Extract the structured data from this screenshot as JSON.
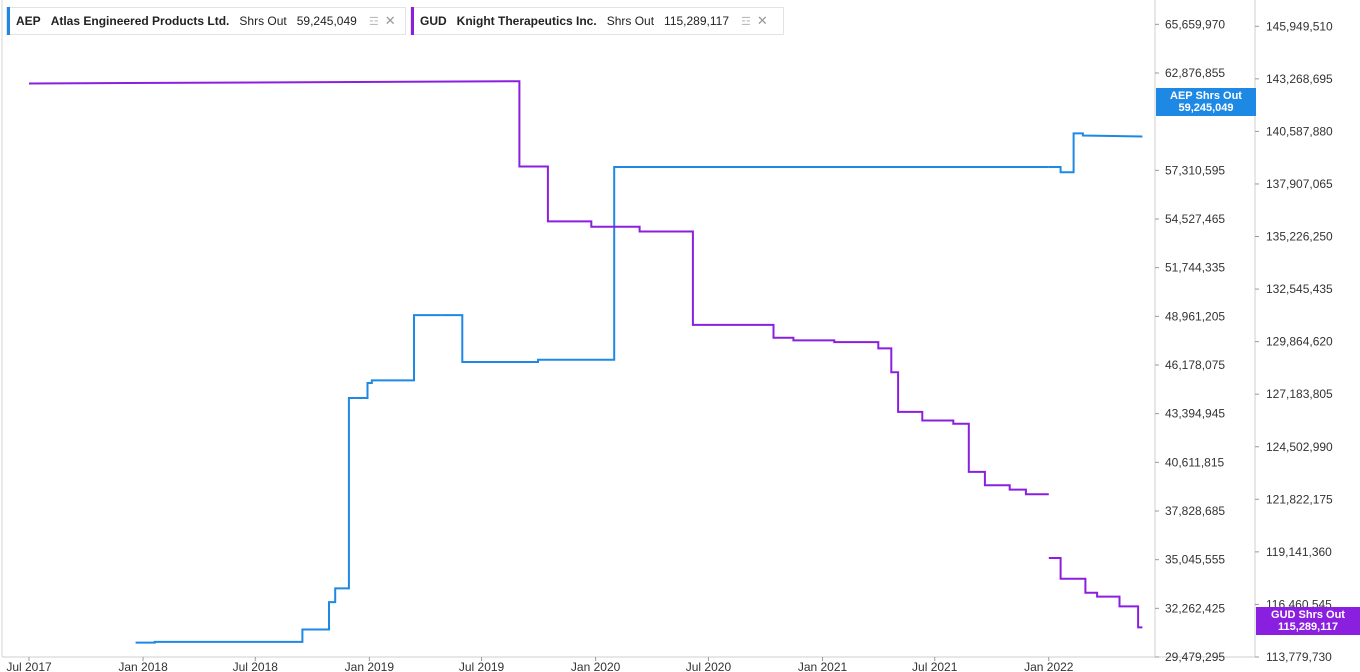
{
  "legend": [
    {
      "ticker": "AEP",
      "name": "Atlas Engineered Products Ltd.",
      "field": "Shrs Out",
      "value": "59,245,049",
      "color": "#1e88e5"
    },
    {
      "ticker": "GUD",
      "name": "Knight Therapeutics Inc.",
      "field": "Shrs Out",
      "value": "115,289,117",
      "color": "#8b1fe0"
    }
  ],
  "tags": {
    "aep": {
      "label": "AEP Shrs Out",
      "value": "59,245,049"
    },
    "gud": {
      "label": "GUD Shrs Out",
      "value": "115,289,117"
    }
  },
  "chart_data": {
    "type": "line",
    "x_ticks": [
      "Jul 2017",
      "Jan 2018",
      "Jul 2018",
      "Jan 2019",
      "Jul 2019",
      "Jan 2020",
      "Jul 2020",
      "Jan 2021",
      "Jul 2021",
      "Jan 2022"
    ],
    "xlim": [
      "2017-07-01",
      "2022-07-01"
    ],
    "y_left": {
      "lim": [
        29479295,
        67051550
      ],
      "ticks": [
        "65,659,970",
        "62,876,855",
        "57,310,595",
        "54,527,465",
        "51,744,335",
        "48,961,205",
        "46,178,075",
        "43,394,945",
        "40,611,815",
        "37,828,685",
        "35,045,555",
        "32,262,425",
        "29,479,295"
      ],
      "tick_values": [
        65659970,
        62876855,
        57310595,
        54527465,
        51744335,
        48961205,
        46178075,
        43394945,
        40611815,
        37828685,
        35045555,
        32262425,
        29479295
      ]
    },
    "y_right": {
      "lim": [
        113779730,
        147290000
      ],
      "ticks": [
        "145,949,510",
        "143,268,695",
        "140,587,880",
        "137,907,065",
        "135,226,250",
        "132,545,435",
        "129,864,620",
        "127,183,805",
        "124,502,990",
        "121,822,175",
        "119,141,360",
        "116,460,545",
        "113,779,730"
      ],
      "tick_values": [
        145949510,
        143268695,
        140587880,
        137907065,
        135226250,
        132545435,
        129864620,
        127183805,
        124502990,
        121822175,
        119141360,
        116460545,
        113779730
      ]
    },
    "series": [
      {
        "name": "AEP Shrs Out",
        "axis": "left",
        "color": "#1e88e5",
        "segments": [
          [
            [
              "2017-12-20",
              30300000
            ],
            [
              "2018-01-20",
              30300000
            ],
            [
              "2018-01-20",
              30340000
            ],
            [
              "2018-09-15",
              30340000
            ],
            [
              "2018-09-15",
              31050000
            ],
            [
              "2018-10-28",
              31050000
            ],
            [
              "2018-10-28",
              32620000
            ],
            [
              "2018-11-07",
              32620000
            ],
            [
              "2018-11-07",
              33400000
            ],
            [
              "2018-11-29",
              33400000
            ],
            [
              "2018-11-29",
              44290000
            ],
            [
              "2018-12-12",
              44290000
            ]
          ],
          [
            [
              "2018-12-12",
              44290000
            ],
            [
              "2018-12-29",
              44290000
            ],
            [
              "2018-12-29",
              45150000
            ],
            [
              "2019-01-05",
              45150000
            ],
            [
              "2019-01-05",
              45300000
            ],
            [
              "2019-03-14",
              45300000
            ],
            [
              "2019-03-14",
              49030000
            ],
            [
              "2019-04-28",
              49030000
            ]
          ],
          [
            [
              "2019-04-28",
              49030000
            ],
            [
              "2019-05-31",
              49030000
            ],
            [
              "2019-05-31",
              46350000
            ],
            [
              "2019-09-30",
              46350000
            ],
            [
              "2019-09-30",
              46480000
            ],
            [
              "2020-01-31",
              46480000
            ],
            [
              "2020-01-31",
              57500000
            ],
            [
              "2021-12-31",
              57500000
            ]
          ],
          [
            [
              "2021-12-31",
              57500000
            ],
            [
              "2022-01-20",
              57500000
            ],
            [
              "2022-01-20",
              57200000
            ],
            [
              "2022-02-10",
              57200000
            ],
            [
              "2022-02-10",
              59420000
            ],
            [
              "2022-02-25",
              59420000
            ],
            [
              "2022-02-25",
              59300000
            ],
            [
              "2022-06-01",
              59245049
            ]
          ]
        ]
      },
      {
        "name": "GUD Shrs Out",
        "axis": "right",
        "color": "#8b1fe0",
        "segments": [
          [
            [
              "2017-07-01",
              143030000
            ],
            [
              "2019-08-31",
              143150000
            ],
            [
              "2019-08-31",
              138800000
            ],
            [
              "2019-10-16",
              138800000
            ],
            [
              "2019-10-16",
              136000000
            ],
            [
              "2019-12-25",
              136000000
            ],
            [
              "2019-12-25",
              135720000
            ],
            [
              "2020-03-12",
              135720000
            ],
            [
              "2020-03-12",
              135480000
            ],
            [
              "2020-06-06",
              135480000
            ],
            [
              "2020-06-06",
              130720000
            ],
            [
              "2020-10-14",
              130720000
            ],
            [
              "2020-10-14",
              130060000
            ],
            [
              "2020-11-15",
              130060000
            ],
            [
              "2020-11-15",
              129930000
            ],
            [
              "2021-01-20",
              129930000
            ],
            [
              "2021-01-20",
              129840000
            ],
            [
              "2021-04-01",
              129840000
            ],
            [
              "2021-04-01",
              129520000
            ],
            [
              "2021-04-22",
              129520000
            ],
            [
              "2021-04-22",
              128300000
            ],
            [
              "2021-05-03",
              128300000
            ],
            [
              "2021-05-03",
              126280000
            ],
            [
              "2021-06-11",
              126280000
            ],
            [
              "2021-06-11",
              125840000
            ],
            [
              "2021-07-31",
              125840000
            ],
            [
              "2021-07-31",
              125680000
            ],
            [
              "2021-08-25",
              125680000
            ],
            [
              "2021-08-25",
              123220000
            ],
            [
              "2021-09-20",
              123220000
            ],
            [
              "2021-09-20",
              122540000
            ],
            [
              "2021-10-30",
              122540000
            ],
            [
              "2021-10-30",
              122320000
            ],
            [
              "2021-11-25",
              122320000
            ],
            [
              "2021-11-25",
              122080000
            ],
            [
              "2022-01-01",
              122080000
            ]
          ],
          [
            [
              "2022-01-01",
              118830000
            ],
            [
              "2022-01-20",
              118830000
            ],
            [
              "2022-01-20",
              117770000
            ],
            [
              "2022-03-01",
              117770000
            ],
            [
              "2022-03-01",
              117060000
            ],
            [
              "2022-03-20",
              117060000
            ],
            [
              "2022-03-20",
              116860000
            ],
            [
              "2022-04-25",
              116860000
            ],
            [
              "2022-04-25",
              116360000
            ],
            [
              "2022-05-25",
              116360000
            ],
            [
              "2022-05-25",
              115289117
            ],
            [
              "2022-06-01",
              115289117
            ]
          ]
        ]
      }
    ]
  }
}
